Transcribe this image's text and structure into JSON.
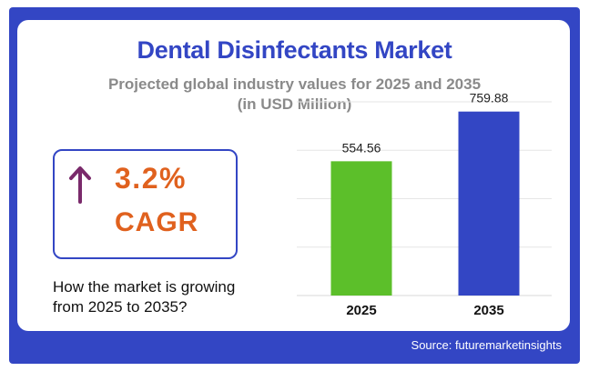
{
  "colors": {
    "brand_blue": "#3346c4",
    "accent_orange": "#e0611e",
    "bar_2025": "#5cbf2a",
    "bar_2035": "#3346c4"
  },
  "header": {
    "title": "Dental Disinfectants Market",
    "subtitle_line1": "Projected global industry values for 2025 and 2035",
    "subtitle_line2": "(in USD Million)"
  },
  "cagr": {
    "icon": "arrow-up-icon",
    "value": "3.2%",
    "label": "CAGR"
  },
  "growth_text": {
    "line1": "How the market is growing",
    "line2": "from 2025 to 2035?"
  },
  "source": "Source: futuremarketinsights",
  "chart_data": {
    "type": "bar",
    "categories": [
      "2025",
      "2035"
    ],
    "values": [
      554.56,
      759.88
    ],
    "value_labels": [
      "554.56",
      "759.88"
    ],
    "ylim": [
      0,
      800
    ],
    "grid": true,
    "xlabel": "",
    "ylabel": ""
  }
}
